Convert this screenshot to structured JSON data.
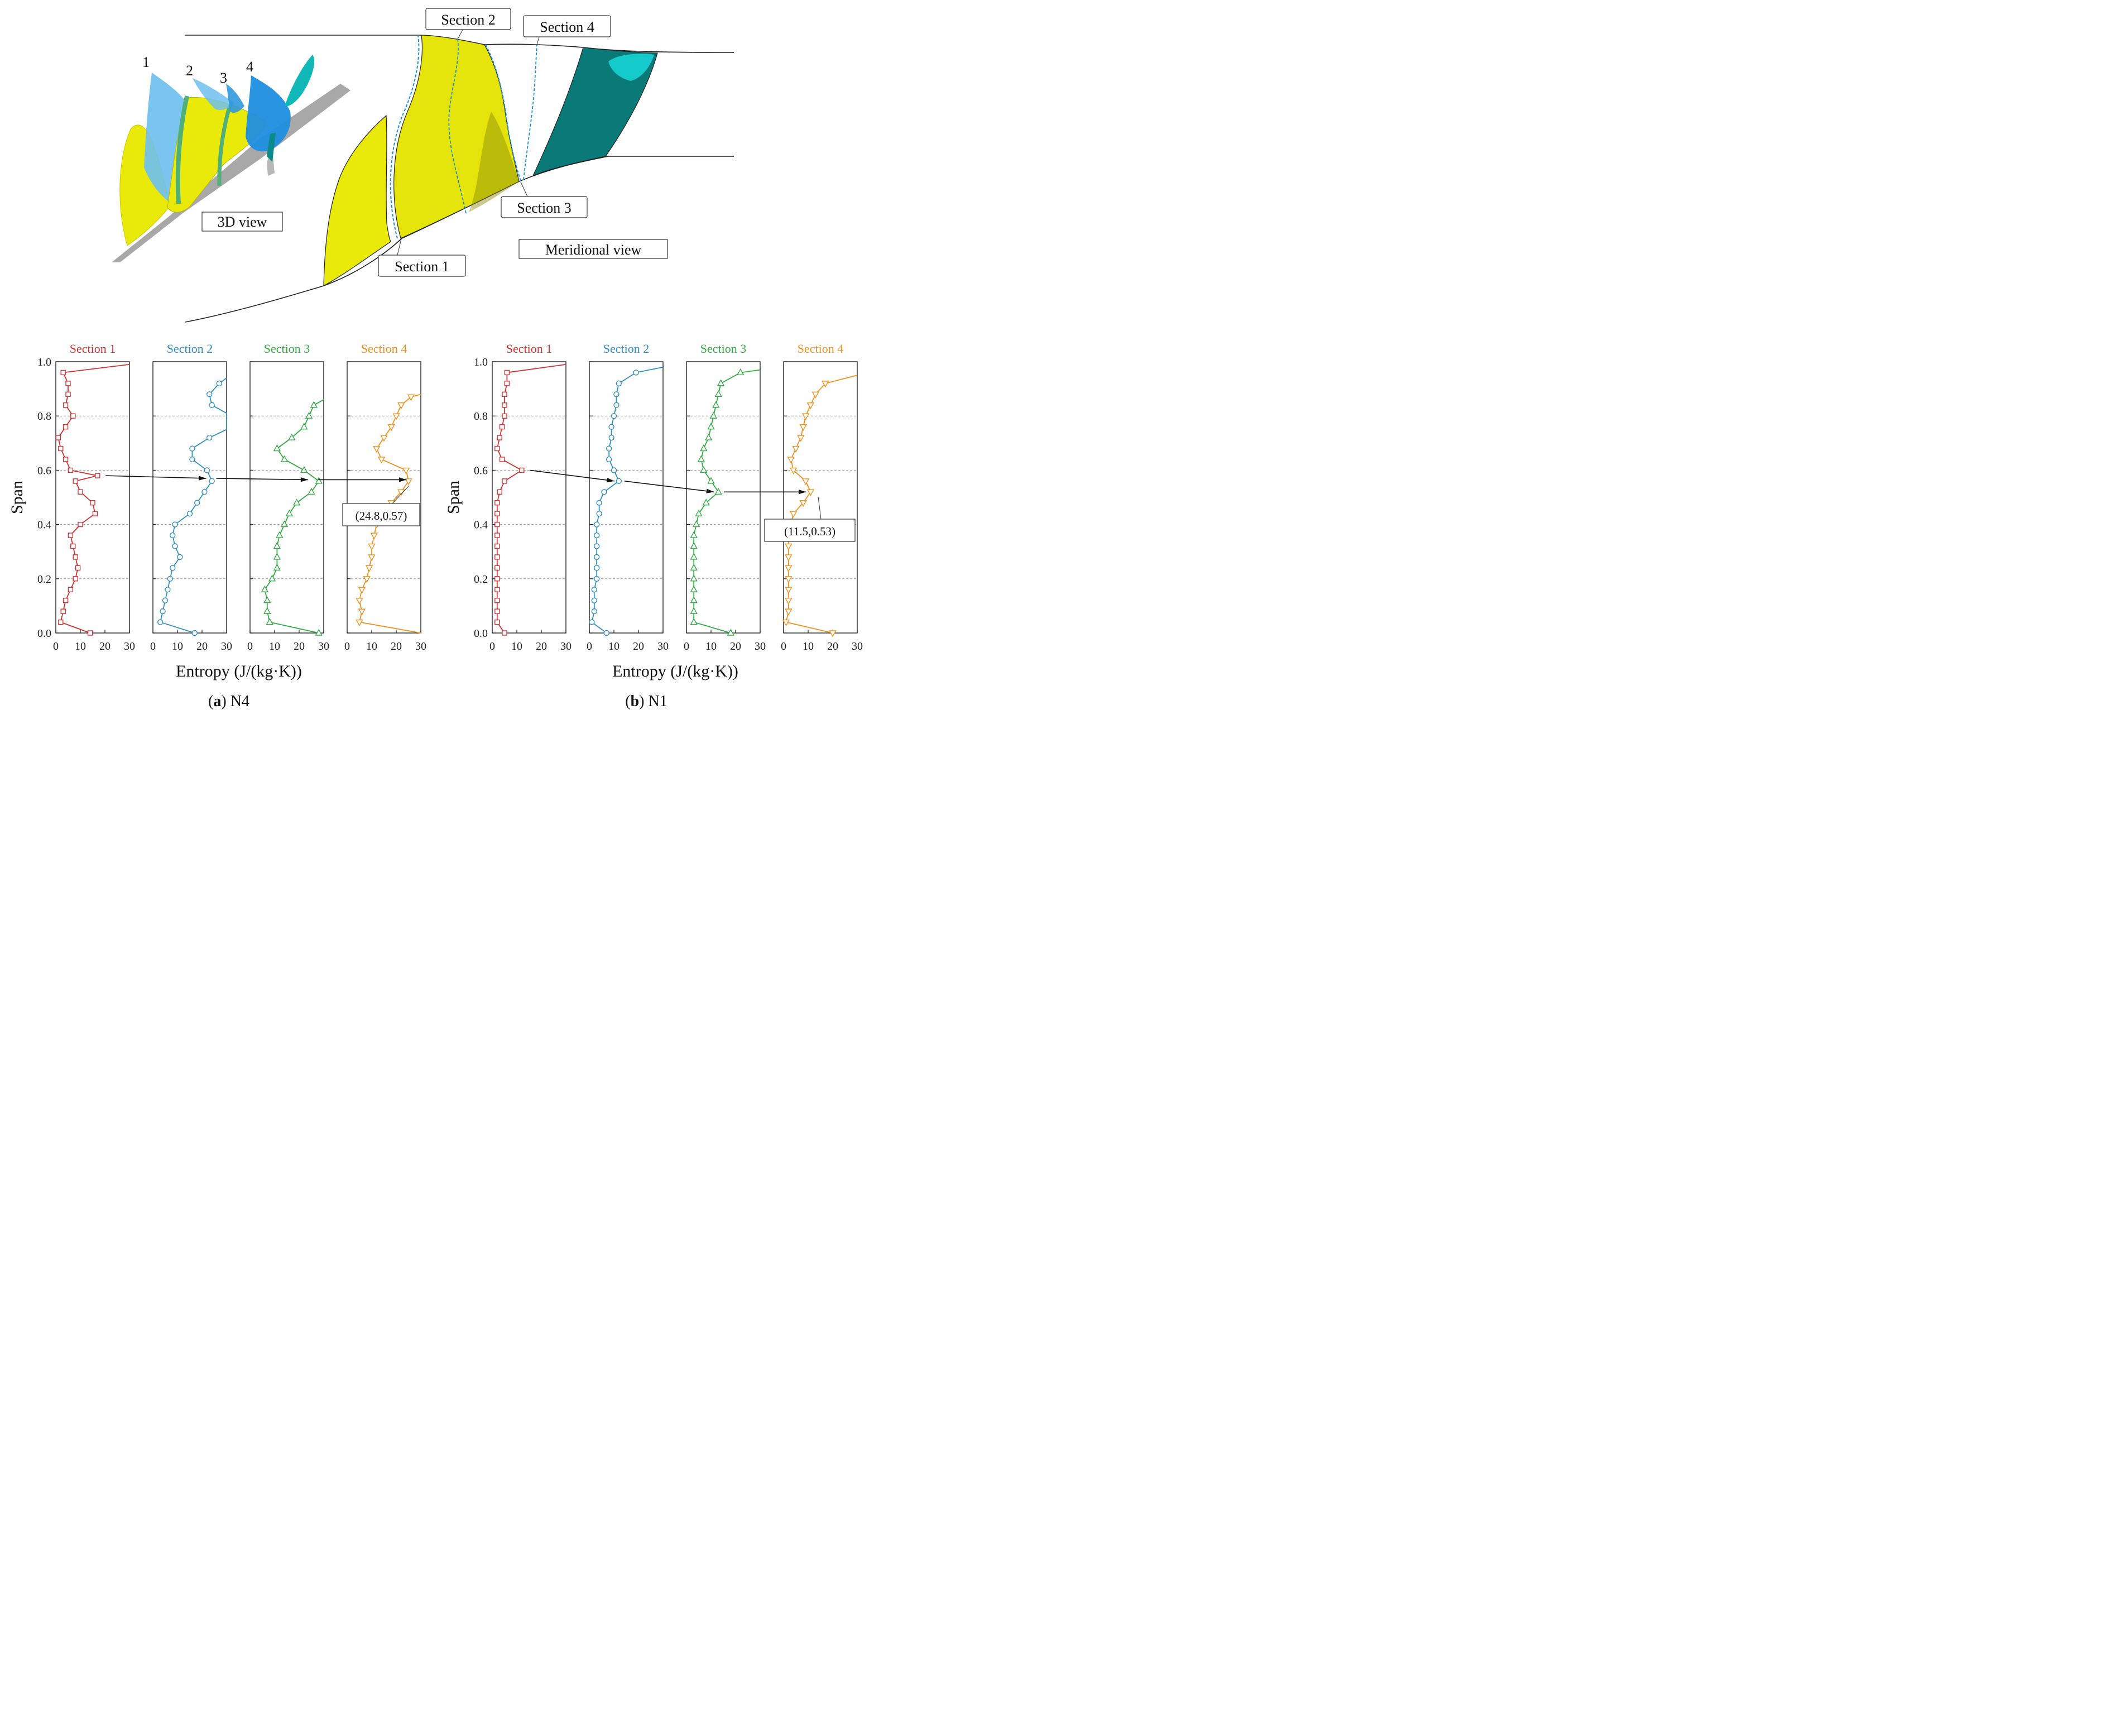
{
  "diagram": {
    "view_3d_label": "3D view",
    "meridional_label": "Meridional view",
    "blade_numbers": [
      "1",
      "2",
      "3",
      "4"
    ],
    "section_callouts": [
      "Section 1",
      "Section 2",
      "Section 3",
      "Section 4"
    ],
    "colors": {
      "blade": "#eaea0a",
      "stator": "#0a7a78",
      "sections_3d": "#4db4e8",
      "hub": "#a8a8a8"
    }
  },
  "chart_data": [
    {
      "type": "line",
      "caption_letter": "a",
      "caption_rest": " N4",
      "ylabel": "Span",
      "xlabel": "Entropy (J/(kg·K))",
      "ylim": [
        0,
        1
      ],
      "xlim": [
        0,
        30
      ],
      "yticks": [
        "0.0",
        "0.2",
        "0.4",
        "0.6",
        "0.8",
        "1.0"
      ],
      "xticks": [
        "0",
        "10",
        "20",
        "30"
      ],
      "series": [
        {
          "name": "Section 1",
          "color": "#cc3333",
          "marker": "square",
          "points": [
            [
              14,
              0.0
            ],
            [
              2,
              0.04
            ],
            [
              3,
              0.08
            ],
            [
              4,
              0.12
            ],
            [
              6,
              0.16
            ],
            [
              8,
              0.2
            ],
            [
              9,
              0.24
            ],
            [
              8,
              0.28
            ],
            [
              7,
              0.32
            ],
            [
              6,
              0.36
            ],
            [
              10,
              0.4
            ],
            [
              16,
              0.44
            ],
            [
              15,
              0.48
            ],
            [
              10,
              0.52
            ],
            [
              8,
              0.56
            ],
            [
              17,
              0.58
            ],
            [
              6,
              0.6
            ],
            [
              4,
              0.64
            ],
            [
              2,
              0.68
            ],
            [
              1,
              0.72
            ],
            [
              4,
              0.76
            ],
            [
              7,
              0.8
            ],
            [
              4,
              0.84
            ],
            [
              5,
              0.88
            ],
            [
              5,
              0.92
            ],
            [
              3,
              0.96
            ],
            [
              30,
              0.99
            ]
          ]
        },
        {
          "name": "Section 2",
          "color": "#2f8fbf",
          "marker": "circle",
          "points": [
            [
              17,
              0.0
            ],
            [
              3,
              0.04
            ],
            [
              4,
              0.08
            ],
            [
              5,
              0.12
            ],
            [
              6,
              0.16
            ],
            [
              7,
              0.2
            ],
            [
              8,
              0.24
            ],
            [
              11,
              0.28
            ],
            [
              9,
              0.32
            ],
            [
              8,
              0.36
            ],
            [
              9,
              0.4
            ],
            [
              15,
              0.44
            ],
            [
              18,
              0.48
            ],
            [
              21,
              0.52
            ],
            [
              24,
              0.56
            ],
            [
              22,
              0.6
            ],
            [
              16,
              0.64
            ],
            [
              16,
              0.68
            ],
            [
              23,
              0.72
            ],
            [
              30,
              0.75
            ],
            [
              30,
              0.81
            ],
            [
              24,
              0.84
            ],
            [
              23,
              0.88
            ],
            [
              27,
              0.92
            ],
            [
              30,
              0.94
            ]
          ]
        },
        {
          "name": "Section 3",
          "color": "#33aa44",
          "marker": "triangle-up",
          "points": [
            [
              28,
              0.0
            ],
            [
              8,
              0.04
            ],
            [
              7,
              0.08
            ],
            [
              7,
              0.12
            ],
            [
              6,
              0.16
            ],
            [
              9,
              0.2
            ],
            [
              11,
              0.24
            ],
            [
              11,
              0.28
            ],
            [
              11,
              0.32
            ],
            [
              12,
              0.36
            ],
            [
              14,
              0.4
            ],
            [
              16,
              0.44
            ],
            [
              19,
              0.48
            ],
            [
              25,
              0.52
            ],
            [
              28,
              0.56
            ],
            [
              22,
              0.6
            ],
            [
              14,
              0.64
            ],
            [
              11,
              0.68
            ],
            [
              17,
              0.72
            ],
            [
              22,
              0.76
            ],
            [
              24,
              0.8
            ],
            [
              26,
              0.84
            ],
            [
              30,
              0.86
            ]
          ]
        },
        {
          "name": "Section 4",
          "color": "#f0921e",
          "marker": "triangle-down",
          "points": [
            [
              30,
              0.0
            ],
            [
              5,
              0.04
            ],
            [
              6,
              0.08
            ],
            [
              5,
              0.12
            ],
            [
              6,
              0.16
            ],
            [
              8,
              0.2
            ],
            [
              9,
              0.24
            ],
            [
              10,
              0.28
            ],
            [
              10,
              0.32
            ],
            [
              11,
              0.36
            ],
            [
              12,
              0.4
            ],
            [
              18,
              0.48
            ],
            [
              22,
              0.52
            ],
            [
              25,
              0.56
            ],
            [
              24,
              0.6
            ],
            [
              14,
              0.64
            ],
            [
              12,
              0.68
            ],
            [
              15,
              0.72
            ],
            [
              18,
              0.76
            ],
            [
              20,
              0.8
            ],
            [
              22,
              0.84
            ],
            [
              26,
              0.87
            ],
            [
              30,
              0.88
            ]
          ]
        }
      ],
      "peak_label": "(24.8,0.57)"
    },
    {
      "type": "line",
      "caption_letter": "b",
      "caption_rest": " N1",
      "ylabel": "Span",
      "xlabel": "Entropy (J/(kg·K))",
      "ylim": [
        0,
        1
      ],
      "xlim": [
        0,
        30
      ],
      "yticks": [
        "0.0",
        "0.2",
        "0.4",
        "0.6",
        "0.8",
        "1.0"
      ],
      "xticks": [
        "0",
        "10",
        "20",
        "30"
      ],
      "series": [
        {
          "name": "Section 1",
          "color": "#cc3333",
          "marker": "square",
          "points": [
            [
              5,
              0.0
            ],
            [
              2,
              0.04
            ],
            [
              2,
              0.08
            ],
            [
              2,
              0.12
            ],
            [
              2,
              0.16
            ],
            [
              2,
              0.2
            ],
            [
              2,
              0.24
            ],
            [
              2,
              0.28
            ],
            [
              2,
              0.32
            ],
            [
              2,
              0.36
            ],
            [
              2,
              0.4
            ],
            [
              2,
              0.44
            ],
            [
              2,
              0.48
            ],
            [
              3,
              0.52
            ],
            [
              5,
              0.56
            ],
            [
              12,
              0.6
            ],
            [
              4,
              0.64
            ],
            [
              2,
              0.68
            ],
            [
              3,
              0.72
            ],
            [
              4,
              0.76
            ],
            [
              5,
              0.8
            ],
            [
              5,
              0.84
            ],
            [
              5,
              0.88
            ],
            [
              6,
              0.92
            ],
            [
              6,
              0.96
            ],
            [
              30,
              0.99
            ]
          ]
        },
        {
          "name": "Section 2",
          "color": "#2f8fbf",
          "marker": "circle",
          "points": [
            [
              7,
              0.0
            ],
            [
              1,
              0.04
            ],
            [
              2,
              0.08
            ],
            [
              2,
              0.12
            ],
            [
              2,
              0.16
            ],
            [
              3,
              0.2
            ],
            [
              3,
              0.24
            ],
            [
              3,
              0.28
            ],
            [
              3,
              0.32
            ],
            [
              3,
              0.36
            ],
            [
              3,
              0.4
            ],
            [
              4,
              0.44
            ],
            [
              4,
              0.48
            ],
            [
              6,
              0.52
            ],
            [
              12,
              0.56
            ],
            [
              10,
              0.6
            ],
            [
              8,
              0.64
            ],
            [
              8,
              0.68
            ],
            [
              9,
              0.72
            ],
            [
              9,
              0.76
            ],
            [
              10,
              0.8
            ],
            [
              11,
              0.84
            ],
            [
              11,
              0.88
            ],
            [
              12,
              0.92
            ],
            [
              19,
              0.96
            ],
            [
              30,
              0.98
            ]
          ]
        },
        {
          "name": "Section 3",
          "color": "#33aa44",
          "marker": "triangle-up",
          "points": [
            [
              18,
              0.0
            ],
            [
              3,
              0.04
            ],
            [
              3,
              0.08
            ],
            [
              3,
              0.12
            ],
            [
              3,
              0.16
            ],
            [
              3,
              0.2
            ],
            [
              3,
              0.24
            ],
            [
              3,
              0.28
            ],
            [
              3,
              0.32
            ],
            [
              3,
              0.36
            ],
            [
              4,
              0.4
            ],
            [
              5,
              0.44
            ],
            [
              8,
              0.48
            ],
            [
              13,
              0.52
            ],
            [
              10,
              0.56
            ],
            [
              7,
              0.6
            ],
            [
              6,
              0.64
            ],
            [
              7,
              0.68
            ],
            [
              9,
              0.72
            ],
            [
              10,
              0.76
            ],
            [
              11,
              0.8
            ],
            [
              12,
              0.84
            ],
            [
              13,
              0.88
            ],
            [
              14,
              0.92
            ],
            [
              22,
              0.96
            ],
            [
              30,
              0.97
            ]
          ]
        },
        {
          "name": "Section 4",
          "color": "#f0921e",
          "marker": "triangle-down",
          "points": [
            [
              20,
              0.0
            ],
            [
              1,
              0.04
            ],
            [
              2,
              0.08
            ],
            [
              2,
              0.12
            ],
            [
              2,
              0.16
            ],
            [
              2,
              0.2
            ],
            [
              2,
              0.24
            ],
            [
              2,
              0.28
            ],
            [
              2,
              0.32
            ],
            [
              2,
              0.36
            ],
            [
              3,
              0.4
            ],
            [
              4,
              0.44
            ],
            [
              8,
              0.48
            ],
            [
              11,
              0.52
            ],
            [
              9,
              0.56
            ],
            [
              4,
              0.6
            ],
            [
              3,
              0.64
            ],
            [
              5,
              0.68
            ],
            [
              7,
              0.72
            ],
            [
              8,
              0.76
            ],
            [
              9,
              0.8
            ],
            [
              11,
              0.84
            ],
            [
              13,
              0.88
            ],
            [
              17,
              0.92
            ],
            [
              30,
              0.95
            ]
          ]
        }
      ],
      "peak_label": "(11.5,0.53)"
    }
  ]
}
